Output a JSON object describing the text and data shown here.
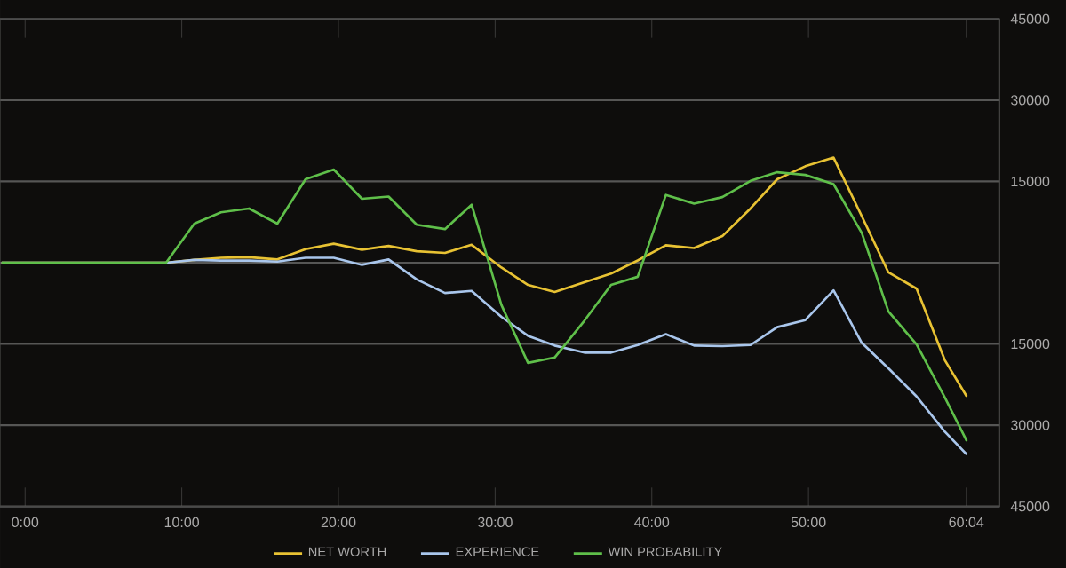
{
  "chart_data": {
    "type": "line",
    "x": [
      -1.5,
      9.0,
      10.8,
      12.5,
      14.3,
      16.1,
      17.9,
      19.7,
      21.5,
      23.2,
      25.0,
      26.8,
      28.5,
      30.4,
      32.1,
      33.8,
      35.7,
      37.4,
      39.1,
      40.9,
      42.7,
      44.5,
      46.3,
      48.0,
      49.8,
      51.6,
      53.4,
      55.1,
      56.9,
      58.7,
      60.1
    ],
    "series": [
      {
        "name": "NET WORTH",
        "color": "#e8c233",
        "values": [
          0,
          0,
          500,
          900,
          1000,
          600,
          2500,
          3500,
          2400,
          3100,
          2100,
          1800,
          3300,
          -900,
          -4100,
          -5400,
          -3600,
          -2000,
          400,
          3200,
          2700,
          4900,
          10000,
          15400,
          17800,
          19400,
          8600,
          -1800,
          -4800,
          -18000,
          -24700
        ]
      },
      {
        "name": "EXPERIENCE",
        "color": "#a9c6ec",
        "values": [
          0,
          0,
          500,
          400,
          400,
          200,
          900,
          900,
          -400,
          600,
          -3100,
          -5600,
          -5200,
          -10000,
          -13500,
          -15300,
          -16600,
          -16600,
          -15200,
          -13200,
          -15300,
          -15400,
          -15200,
          -11900,
          -10600,
          -5100,
          -14800,
          -19500,
          -24700,
          -31200,
          -35400
        ]
      },
      {
        "name": "WIN PROBABILITY",
        "color": "#5fbf4a",
        "values": [
          0,
          0,
          7200,
          9300,
          10000,
          7200,
          15400,
          17200,
          11800,
          12200,
          7000,
          6200,
          10700,
          -7800,
          -18500,
          -17500,
          -10700,
          -4100,
          -2600,
          12500,
          10900,
          12100,
          15100,
          16700,
          16200,
          14500,
          5500,
          -9000,
          -15100,
          -24900,
          -32900
        ]
      }
    ],
    "xlim": [
      -1.6,
      62.2
    ],
    "xticks": [
      {
        "value": 0,
        "label": "0:00"
      },
      {
        "value": 10,
        "label": "10:00"
      },
      {
        "value": 20,
        "label": "20:00"
      },
      {
        "value": 30,
        "label": "30:00"
      },
      {
        "value": 40,
        "label": "40:00"
      },
      {
        "value": 50,
        "label": "50:00"
      },
      {
        "value": 60.07,
        "label": "60:04"
      }
    ],
    "ylim": [
      -45000,
      45000
    ],
    "yticks": [
      {
        "value": -45000,
        "label": "45000"
      },
      {
        "value": -30000,
        "label": "30000"
      },
      {
        "value": -15000,
        "label": "15000"
      },
      {
        "value": 0,
        "label": null
      },
      {
        "value": 15000,
        "label": "15000"
      },
      {
        "value": 30000,
        "label": "30000"
      },
      {
        "value": 45000,
        "label": "45000"
      }
    ],
    "grid": "y",
    "legend": "bottom"
  }
}
